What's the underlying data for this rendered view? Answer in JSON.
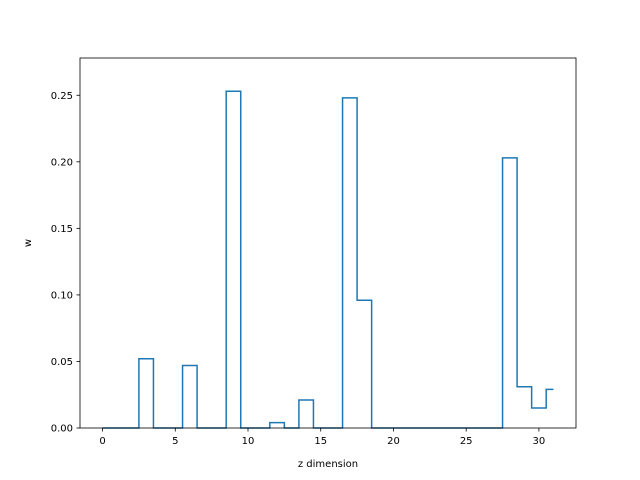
{
  "chart_data": {
    "type": "line",
    "drawstyle": "steps-mid",
    "title": "",
    "xlabel": "z dimension",
    "ylabel": "w",
    "xlim": [
      -1.55,
      32.55
    ],
    "ylim": [
      0,
      0.278
    ],
    "xticks": [
      0,
      5,
      10,
      15,
      20,
      25,
      30
    ],
    "yticks": [
      0.0,
      0.05,
      0.1,
      0.15,
      0.2,
      0.25
    ],
    "ytick_labels": [
      "0.00",
      "0.05",
      "0.10",
      "0.15",
      "0.20",
      "0.25"
    ],
    "grid": false,
    "legend": "none",
    "color": "#1f77b4",
    "x": [
      0,
      1,
      2,
      3,
      4,
      5,
      6,
      7,
      8,
      9,
      10,
      11,
      12,
      13,
      14,
      15,
      16,
      17,
      18,
      19,
      20,
      21,
      22,
      23,
      24,
      25,
      26,
      27,
      28,
      29,
      30,
      31
    ],
    "values": [
      0,
      0,
      0,
      0.052,
      0,
      0,
      0.047,
      0,
      0,
      0.253,
      0,
      0,
      0.004,
      0,
      0.021,
      0,
      0,
      0.248,
      0.096,
      0,
      0,
      0,
      0,
      0,
      0,
      0,
      0,
      0,
      0.203,
      0.031,
      0.015,
      0.029
    ]
  }
}
